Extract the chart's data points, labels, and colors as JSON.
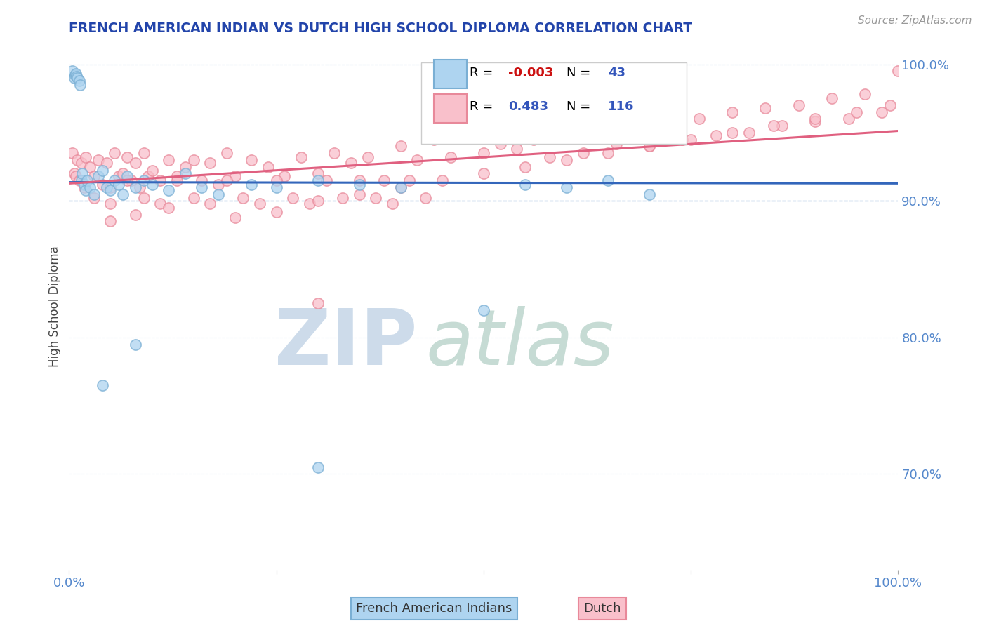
{
  "title": "FRENCH AMERICAN INDIAN VS DUTCH HIGH SCHOOL DIPLOMA CORRELATION CHART",
  "source": "Source: ZipAtlas.com",
  "ylabel": "High School Diploma",
  "right_yticks": [
    70.0,
    80.0,
    90.0,
    100.0
  ],
  "legend_blue_r": "-0.003",
  "legend_blue_n": "43",
  "legend_pink_r": "0.483",
  "legend_pink_n": "116",
  "blue_face_color": "#AED4F0",
  "blue_edge_color": "#7AAFD4",
  "pink_face_color": "#F9C0CB",
  "pink_edge_color": "#E8899A",
  "blue_line_color": "#3366BB",
  "pink_line_color": "#E06080",
  "title_color": "#2244AA",
  "axis_tick_color": "#5588CC",
  "watermark_zip_color": "#C8D8E8",
  "watermark_atlas_color": "#C0D8D0",
  "source_color": "#999999",
  "grid_color_90": "#99BBDD",
  "grid_color_other": "#CCDDEE",
  "xlim": [
    0.0,
    1.0
  ],
  "ylim": [
    63.0,
    101.5
  ],
  "blue_x": [
    0.004,
    0.006,
    0.007,
    0.008,
    0.009,
    0.01,
    0.012,
    0.013,
    0.015,
    0.016,
    0.018,
    0.02,
    0.022,
    0.025,
    0.03,
    0.035,
    0.04,
    0.045,
    0.05,
    0.055,
    0.06,
    0.065,
    0.07,
    0.08,
    0.09,
    0.1,
    0.12,
    0.14,
    0.16,
    0.18,
    0.22,
    0.25,
    0.3,
    0.35,
    0.4,
    0.5,
    0.55,
    0.6,
    0.65,
    0.7,
    0.04,
    0.08,
    0.3
  ],
  "blue_y": [
    99.5,
    99.0,
    99.2,
    99.3,
    99.1,
    99.0,
    98.8,
    98.5,
    91.5,
    92.0,
    91.2,
    90.8,
    91.5,
    91.0,
    90.5,
    91.8,
    92.2,
    91.0,
    90.8,
    91.5,
    91.2,
    90.5,
    91.8,
    91.0,
    91.5,
    91.2,
    90.8,
    92.0,
    91.0,
    90.5,
    91.2,
    91.0,
    91.5,
    91.2,
    91.0,
    82.0,
    91.2,
    91.0,
    91.5,
    90.5,
    76.5,
    79.5,
    70.5
  ],
  "pink_x": [
    0.004,
    0.006,
    0.008,
    0.01,
    0.012,
    0.015,
    0.018,
    0.02,
    0.025,
    0.03,
    0.035,
    0.04,
    0.045,
    0.05,
    0.055,
    0.06,
    0.065,
    0.07,
    0.075,
    0.08,
    0.085,
    0.09,
    0.095,
    0.1,
    0.11,
    0.12,
    0.13,
    0.14,
    0.15,
    0.16,
    0.17,
    0.18,
    0.19,
    0.2,
    0.22,
    0.24,
    0.26,
    0.28,
    0.3,
    0.32,
    0.34,
    0.36,
    0.38,
    0.4,
    0.42,
    0.44,
    0.46,
    0.48,
    0.5,
    0.52,
    0.54,
    0.56,
    0.58,
    0.6,
    0.62,
    0.64,
    0.66,
    0.68,
    0.7,
    0.72,
    0.74,
    0.76,
    0.78,
    0.8,
    0.82,
    0.84,
    0.86,
    0.88,
    0.9,
    0.92,
    0.94,
    0.96,
    0.98,
    1.0,
    0.03,
    0.05,
    0.07,
    0.09,
    0.11,
    0.13,
    0.15,
    0.17,
    0.19,
    0.21,
    0.23,
    0.25,
    0.27,
    0.29,
    0.31,
    0.33,
    0.35,
    0.37,
    0.39,
    0.41,
    0.43,
    0.05,
    0.08,
    0.12,
    0.2,
    0.25,
    0.3,
    0.35,
    0.4,
    0.45,
    0.5,
    0.55,
    0.6,
    0.65,
    0.7,
    0.75,
    0.8,
    0.85,
    0.9,
    0.95,
    0.99,
    0.3
  ],
  "pink_y": [
    93.5,
    92.0,
    91.8,
    93.0,
    91.5,
    92.8,
    91.0,
    93.2,
    92.5,
    91.8,
    93.0,
    91.2,
    92.8,
    91.0,
    93.5,
    91.8,
    92.0,
    93.2,
    91.5,
    92.8,
    91.0,
    93.5,
    91.8,
    92.2,
    91.5,
    93.0,
    91.8,
    92.5,
    93.0,
    91.5,
    92.8,
    91.2,
    93.5,
    91.8,
    93.0,
    92.5,
    91.8,
    93.2,
    92.0,
    93.5,
    92.8,
    93.2,
    91.5,
    94.0,
    93.0,
    94.5,
    93.2,
    94.8,
    93.5,
    94.2,
    93.8,
    94.5,
    93.2,
    94.8,
    93.5,
    95.0,
    94.2,
    95.5,
    94.0,
    95.8,
    94.5,
    96.0,
    94.8,
    96.5,
    95.0,
    96.8,
    95.5,
    97.0,
    95.8,
    97.5,
    96.0,
    97.8,
    96.5,
    99.5,
    90.2,
    89.8,
    91.5,
    90.2,
    89.8,
    91.5,
    90.2,
    89.8,
    91.5,
    90.2,
    89.8,
    91.5,
    90.2,
    89.8,
    91.5,
    90.2,
    91.5,
    90.2,
    89.8,
    91.5,
    90.2,
    88.5,
    89.0,
    89.5,
    88.8,
    89.2,
    90.0,
    90.5,
    91.0,
    91.5,
    92.0,
    92.5,
    93.0,
    93.5,
    94.0,
    94.5,
    95.0,
    95.5,
    96.0,
    96.5,
    97.0,
    82.5
  ]
}
